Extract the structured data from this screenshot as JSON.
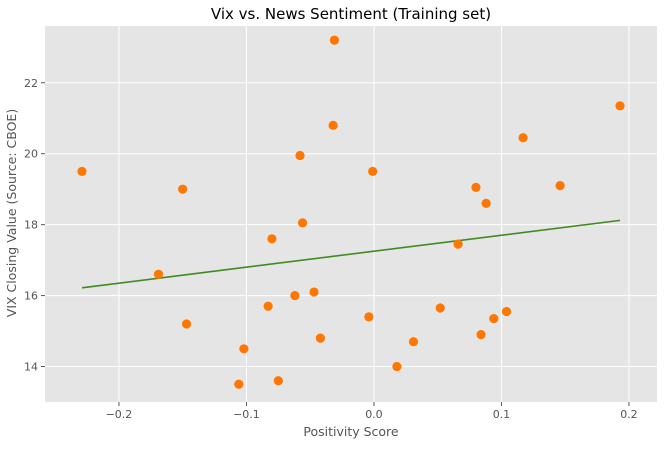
{
  "chart_data": {
    "type": "scatter",
    "title": "Vix vs. News Sentiment (Training set)",
    "xlabel": "Positivity Score",
    "ylabel": "VIX Closing Value (Source: CBOE)",
    "xlim": [
      -0.258,
      0.222
    ],
    "ylim": [
      13.0,
      23.6
    ],
    "xticks": [
      -0.2,
      -0.1,
      0.0,
      0.1,
      0.2
    ],
    "xtick_labels": [
      "−0.2",
      "−0.1",
      "0.0",
      "0.1",
      "0.2"
    ],
    "yticks": [
      14,
      16,
      18,
      20,
      22
    ],
    "ytick_labels": [
      "14",
      "16",
      "18",
      "20",
      "22"
    ],
    "grid": true,
    "points": {
      "color": "#ff7700",
      "x": [
        -0.229,
        -0.169,
        -0.15,
        -0.147,
        -0.106,
        -0.102,
        -0.083,
        -0.08,
        -0.075,
        -0.062,
        -0.058,
        -0.056,
        -0.047,
        -0.042,
        -0.032,
        -0.031,
        -0.004,
        -0.001,
        0.018,
        0.031,
        0.052,
        0.066,
        0.08,
        0.084,
        0.088,
        0.094,
        0.104,
        0.117,
        0.146,
        0.193
      ],
      "y": [
        19.5,
        16.6,
        19.0,
        15.2,
        13.5,
        14.5,
        15.7,
        17.6,
        13.6,
        16.0,
        19.95,
        18.05,
        16.1,
        14.8,
        20.8,
        23.2,
        15.4,
        19.5,
        14.0,
        14.7,
        15.65,
        17.45,
        19.05,
        14.9,
        18.6,
        15.35,
        15.55,
        20.45,
        19.1,
        21.35
      ]
    },
    "fit_line": {
      "color": "#3d8b21",
      "x": [
        -0.229,
        0.193
      ],
      "y": [
        16.22,
        18.12
      ]
    }
  }
}
